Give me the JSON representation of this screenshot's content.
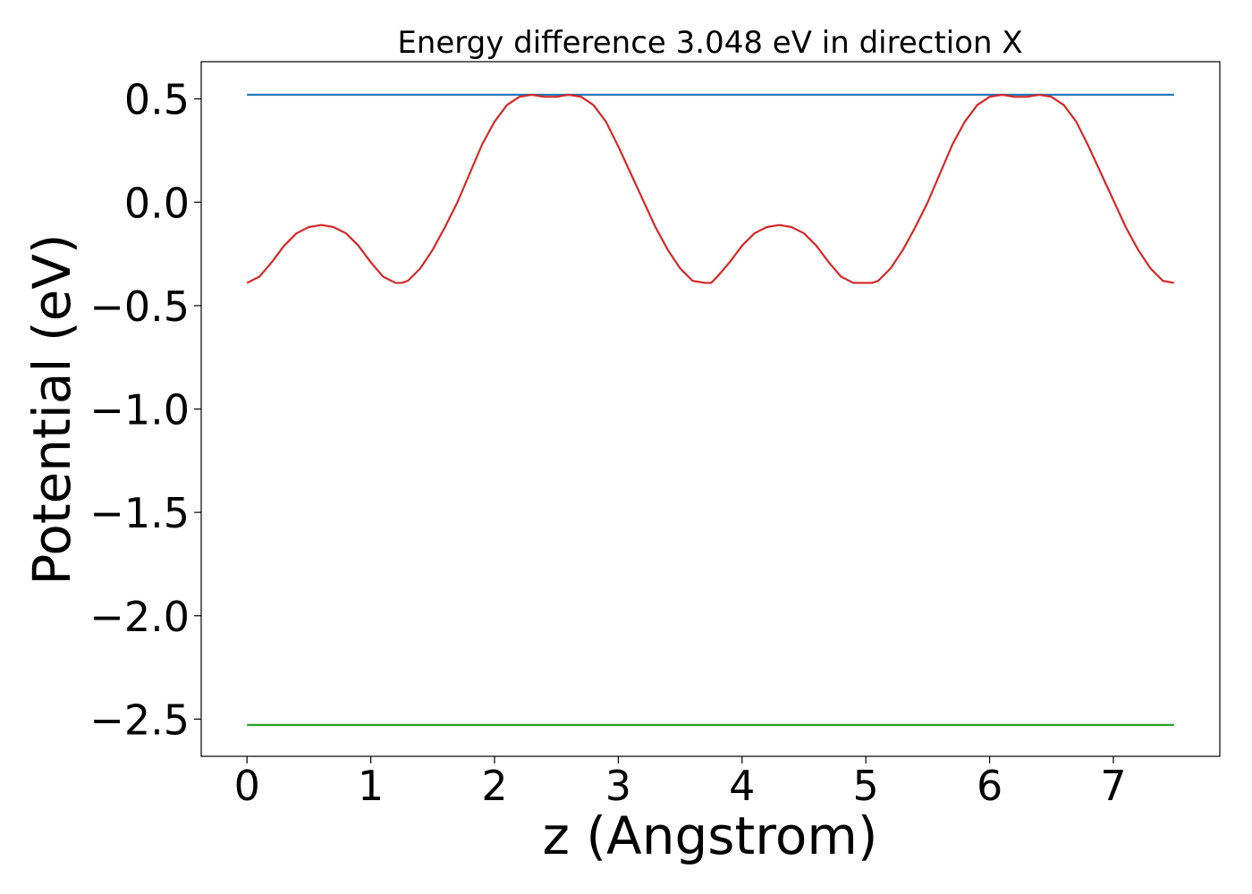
{
  "chart_data": {
    "type": "line",
    "title": "Energy difference 3.048 eV in direction X",
    "xlabel": "z (Angstrom)",
    "ylabel": "Potential (eV)",
    "xlim": [
      -0.37,
      7.86
    ],
    "ylim": [
      -2.68,
      0.68
    ],
    "grid": false,
    "legend": "none",
    "xticks": [
      0,
      1,
      2,
      3,
      4,
      5,
      6,
      7
    ],
    "xtick_labels": [
      "0",
      "1",
      "2",
      "3",
      "4",
      "5",
      "6",
      "7"
    ],
    "yticks": [
      0.5,
      0.0,
      -0.5,
      -1.0,
      -1.5,
      -2.0,
      -2.5
    ],
    "ytick_labels": [
      "0.5",
      "0.0",
      "−0.5",
      "−1.0",
      "−1.5",
      "−2.0",
      "−2.5"
    ],
    "series": [
      {
        "color": "#1f77b4",
        "x": [
          0,
          7.49
        ],
        "y": [
          0.52,
          0.52
        ]
      },
      {
        "color": "#d62728",
        "x": [
          0,
          0.1,
          0.2,
          0.3,
          0.4,
          0.5,
          0.6,
          0.7,
          0.8,
          0.9,
          1.0,
          1.1,
          1.2,
          1.25,
          1.3,
          1.4,
          1.5,
          1.6,
          1.7,
          1.8,
          1.9,
          2.0,
          2.1,
          2.2,
          2.3,
          2.4,
          2.5,
          2.6,
          2.7,
          2.8,
          2.9,
          3.0,
          3.1,
          3.2,
          3.3,
          3.4,
          3.5,
          3.6,
          3.7,
          3.75,
          3.8,
          3.9,
          4.0,
          4.1,
          4.2,
          4.3,
          4.4,
          4.5,
          4.6,
          4.7,
          4.8,
          4.9,
          5.0,
          5.05,
          5.1,
          5.2,
          5.3,
          5.4,
          5.5,
          5.6,
          5.7,
          5.8,
          5.9,
          6.0,
          6.1,
          6.2,
          6.3,
          6.4,
          6.5,
          6.6,
          6.7,
          6.8,
          6.9,
          7.0,
          7.1,
          7.2,
          7.3,
          7.4,
          7.49
        ],
        "y": [
          -0.39,
          -0.36,
          -0.29,
          -0.21,
          -0.15,
          -0.12,
          -0.11,
          -0.12,
          -0.15,
          -0.21,
          -0.29,
          -0.36,
          -0.39,
          -0.39,
          -0.38,
          -0.32,
          -0.23,
          -0.12,
          0.0,
          0.14,
          0.28,
          0.39,
          0.47,
          0.51,
          0.52,
          0.51,
          0.51,
          0.52,
          0.51,
          0.47,
          0.39,
          0.27,
          0.14,
          0.01,
          -0.12,
          -0.23,
          -0.32,
          -0.38,
          -0.39,
          -0.39,
          -0.36,
          -0.29,
          -0.21,
          -0.15,
          -0.12,
          -0.11,
          -0.12,
          -0.15,
          -0.21,
          -0.29,
          -0.36,
          -0.39,
          -0.39,
          -0.39,
          -0.38,
          -0.32,
          -0.23,
          -0.12,
          0.0,
          0.14,
          0.28,
          0.39,
          0.47,
          0.51,
          0.52,
          0.51,
          0.51,
          0.52,
          0.51,
          0.47,
          0.39,
          0.27,
          0.14,
          0.01,
          -0.12,
          -0.23,
          -0.32,
          -0.38,
          -0.39
        ]
      },
      {
        "color": "#2ca02c",
        "x": [
          0,
          7.49
        ],
        "y": [
          -2.528,
          -2.528
        ]
      }
    ]
  }
}
